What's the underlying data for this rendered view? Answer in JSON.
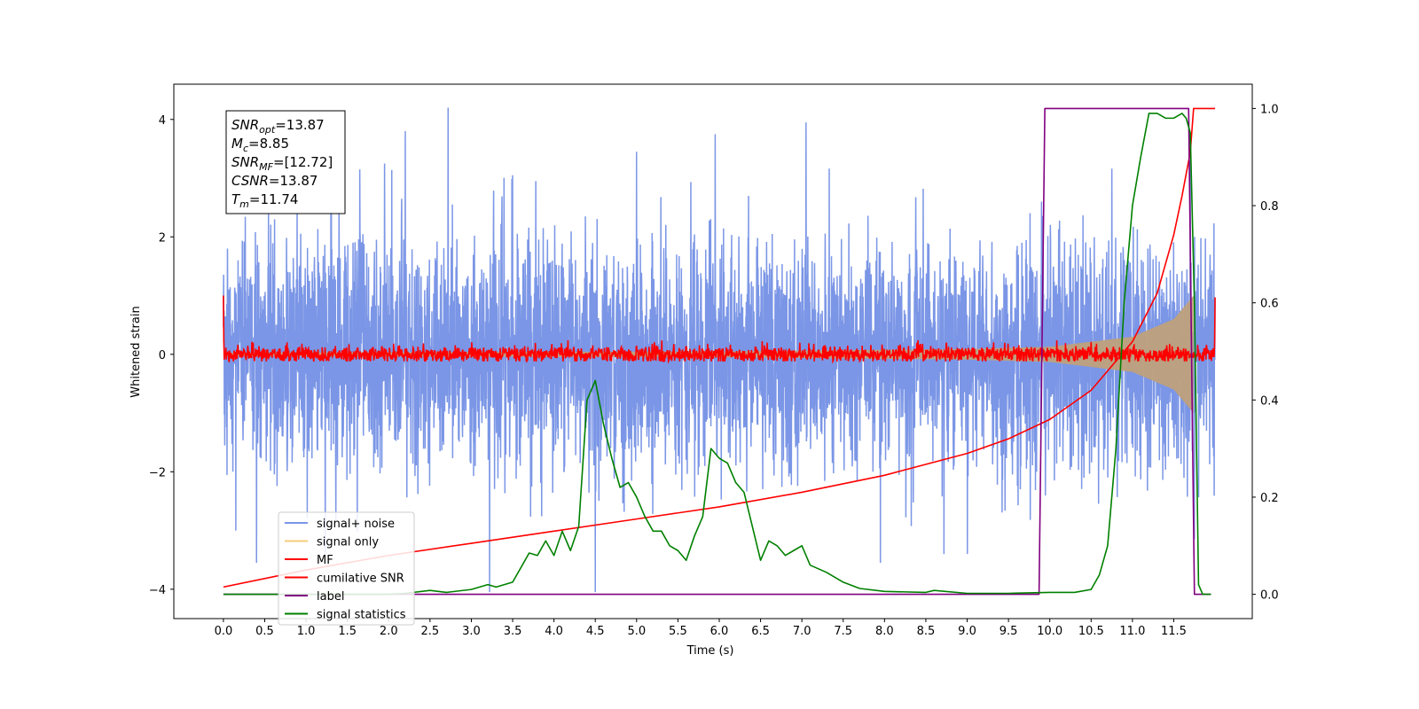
{
  "chart_data": {
    "type": "line",
    "title": "",
    "xlabel": "Time (s)",
    "ylabel": "Whitened strain",
    "ylabel_right": "",
    "xlim": [
      -0.6,
      12.45
    ],
    "ylim": [
      -4.5,
      4.6
    ],
    "ylim_right": [
      -0.05,
      1.05
    ],
    "x_ticks": [
      "0.0",
      "0.5",
      "1.0",
      "1.5",
      "2.0",
      "2.5",
      "3.0",
      "3.5",
      "4.0",
      "4.5",
      "5.0",
      "5.5",
      "6.0",
      "6.5",
      "7.0",
      "7.5",
      "8.0",
      "8.5",
      "9.0",
      "9.5",
      "10.0",
      "10.5",
      "11.0",
      "11.5"
    ],
    "y_ticks_left": [
      "-4",
      "-2",
      "0",
      "2",
      "4"
    ],
    "y_ticks_right": [
      "0.0",
      "0.2",
      "0.4",
      "0.6",
      "0.8",
      "1.0"
    ],
    "legend_placement": "lower-left",
    "grid": false,
    "annotation": {
      "lines": [
        {
          "var": "SNR",
          "sub": "opt",
          "value": "=13.87"
        },
        {
          "var": "M",
          "sub": "c",
          "value": "=8.85"
        },
        {
          "var": "SNR",
          "sub": "MF",
          "value": "=[12.72]"
        },
        {
          "var": "CSNR",
          "sub": "",
          "value": "=13.87"
        },
        {
          "var": "T",
          "sub": "m",
          "value": "=11.74"
        }
      ]
    },
    "series": [
      {
        "name": "signal+ noise",
        "axis": "left",
        "color": "#7b96e6",
        "style": "noise",
        "t_start": 0.0,
        "t_end": 12.0,
        "sigma": 1.0,
        "peak_samples": [
          {
            "t": 0.05,
            "y": 1.8
          },
          {
            "t": 0.15,
            "y": -3.0
          },
          {
            "t": 0.4,
            "y": -3.55
          },
          {
            "t": 0.62,
            "y": 2.3
          },
          {
            "t": 1.3,
            "y": 2.85
          },
          {
            "t": 1.65,
            "y": 3.15
          },
          {
            "t": 1.95,
            "y": 3.25
          },
          {
            "t": 2.2,
            "y": 3.8
          },
          {
            "t": 2.72,
            "y": 4.2
          },
          {
            "t": 3.22,
            "y": -4.05
          },
          {
            "t": 3.5,
            "y": 3.05
          },
          {
            "t": 4.5,
            "y": -4.05
          },
          {
            "t": 5.0,
            "y": 3.45
          },
          {
            "t": 5.95,
            "y": 3.75
          },
          {
            "t": 7.05,
            "y": 3.95
          },
          {
            "t": 7.95,
            "y": -3.55
          },
          {
            "t": 9.9,
            "y": 2.6
          },
          {
            "t": 11.7,
            "y": 3.3
          },
          {
            "t": 11.75,
            "y": -3.15
          }
        ]
      },
      {
        "name": "signal only",
        "axis": "left",
        "color": "#f5cc7a",
        "style": "chirp",
        "t_start": 0.0,
        "t_end": 12.0,
        "t_merge": 11.74,
        "amplitude_at": [
          {
            "t": 0.0,
            "a": 0.03
          },
          {
            "t": 6.0,
            "a": 0.05
          },
          {
            "t": 9.0,
            "a": 0.09
          },
          {
            "t": 10.0,
            "a": 0.13
          },
          {
            "t": 11.0,
            "a": 0.3
          },
          {
            "t": 11.5,
            "a": 0.6
          },
          {
            "t": 11.74,
            "a": 1.0
          }
        ]
      },
      {
        "name": "MF",
        "axis": "left",
        "color": "#ff0000",
        "style": "noise",
        "t_start": 0.0,
        "t_end": 12.0,
        "sigma": 0.07,
        "edge_values": [
          {
            "t": 0.0,
            "y": 1.0
          },
          {
            "t": 12.0,
            "y": 0.97
          }
        ]
      },
      {
        "name": "cumilative SNR",
        "axis": "right",
        "color": "#ff0000",
        "x": [
          0.0,
          1.0,
          2.0,
          3.0,
          4.0,
          5.0,
          6.0,
          7.0,
          8.0,
          9.0,
          9.5,
          10.0,
          10.5,
          11.0,
          11.3,
          11.5,
          11.6,
          11.7,
          11.74,
          11.75,
          11.9,
          12.0
        ],
        "y": [
          0.015,
          0.05,
          0.08,
          0.105,
          0.13,
          0.155,
          0.18,
          0.21,
          0.245,
          0.29,
          0.32,
          0.36,
          0.42,
          0.52,
          0.62,
          0.74,
          0.82,
          0.91,
          1.0,
          1.0,
          1.0,
          1.0
        ]
      },
      {
        "name": "label",
        "axis": "right",
        "color": "#800080",
        "x": [
          0.0,
          9.87,
          9.94,
          11.68,
          11.75,
          11.95
        ],
        "y": [
          0.0,
          0.0,
          1.0,
          1.0,
          0.0,
          0.0
        ]
      },
      {
        "name": "signal statistics",
        "axis": "right",
        "color": "#008000",
        "x": [
          0.0,
          1.0,
          2.0,
          2.2,
          2.5,
          2.7,
          3.0,
          3.2,
          3.3,
          3.5,
          3.7,
          3.8,
          3.9,
          4.0,
          4.1,
          4.2,
          4.3,
          4.4,
          4.5,
          4.6,
          4.7,
          4.8,
          4.9,
          5.0,
          5.1,
          5.2,
          5.3,
          5.4,
          5.5,
          5.6,
          5.7,
          5.8,
          5.9,
          6.0,
          6.1,
          6.2,
          6.3,
          6.4,
          6.5,
          6.6,
          6.7,
          6.8,
          6.9,
          7.0,
          7.1,
          7.3,
          7.5,
          7.7,
          8.0,
          8.5,
          8.6,
          9.0,
          9.5,
          10.0,
          10.3,
          10.5,
          10.6,
          10.7,
          10.8,
          10.9,
          11.0,
          11.1,
          11.2,
          11.3,
          11.4,
          11.5,
          11.6,
          11.65,
          11.7,
          11.75,
          11.8,
          11.85,
          11.95
        ],
        "y": [
          0.0,
          0.0,
          0.0,
          0.002,
          0.008,
          0.004,
          0.01,
          0.02,
          0.015,
          0.025,
          0.085,
          0.08,
          0.11,
          0.08,
          0.13,
          0.09,
          0.14,
          0.4,
          0.44,
          0.35,
          0.28,
          0.22,
          0.23,
          0.2,
          0.16,
          0.13,
          0.13,
          0.1,
          0.09,
          0.07,
          0.12,
          0.16,
          0.3,
          0.28,
          0.27,
          0.23,
          0.21,
          0.14,
          0.07,
          0.11,
          0.1,
          0.08,
          0.09,
          0.1,
          0.06,
          0.045,
          0.025,
          0.012,
          0.006,
          0.004,
          0.008,
          0.002,
          0.002,
          0.004,
          0.004,
          0.01,
          0.04,
          0.1,
          0.3,
          0.6,
          0.8,
          0.9,
          0.99,
          0.99,
          0.98,
          0.98,
          0.99,
          0.98,
          0.95,
          0.6,
          0.02,
          0.0,
          0.0
        ]
      }
    ]
  }
}
